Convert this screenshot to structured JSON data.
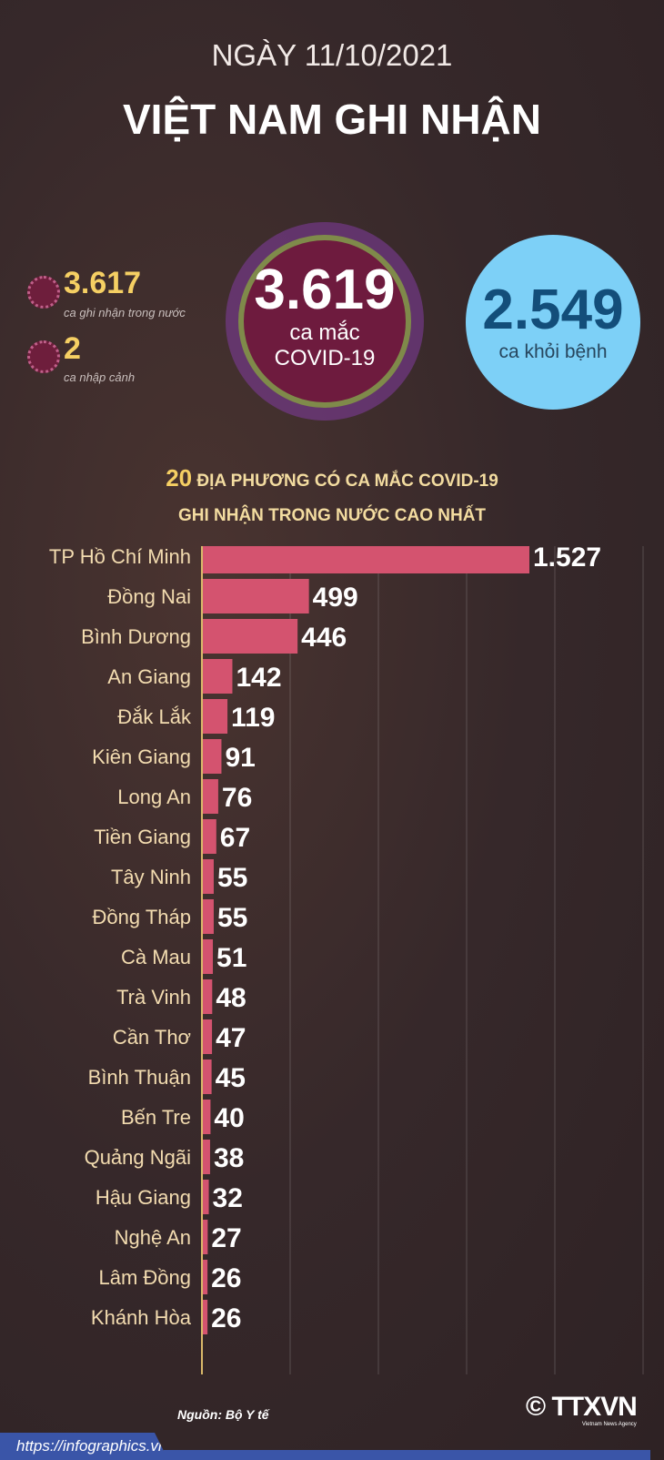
{
  "header": {
    "date": "NGÀY 11/10/2021",
    "title": "VIỆT NAM GHI NHẬN"
  },
  "stats": {
    "domestic": {
      "value": "3.617",
      "label": "ca ghi nhận trong nước"
    },
    "imported": {
      "value": "2",
      "label": "ca nhập cảnh"
    },
    "total": {
      "value": "3.619",
      "label1": "ca mắc",
      "label2": "COVID-19"
    },
    "recovered": {
      "value": "2.549",
      "label": "ca khỏi bệnh"
    }
  },
  "chart_data": {
    "type": "bar",
    "orientation": "horizontal",
    "title_number": "20",
    "title_line1": "ĐỊA PHƯƠNG CÓ CA MẮC COVID-19",
    "title_line2": "GHI NHẬN TRONG NƯỚC CAO NHẤT",
    "categories": [
      "TP Hồ Chí Minh",
      "Đồng Nai",
      "Bình Dương",
      "An Giang",
      "Đắk Lắk",
      "Kiên Giang",
      "Long An",
      "Tiền Giang",
      "Tây Ninh",
      "Đồng Tháp",
      "Cà Mau",
      "Trà Vinh",
      "Cần Thơ",
      "Bình Thuận",
      "Bến Tre",
      "Quảng Ngãi",
      "Hậu Giang",
      "Nghệ An",
      "Lâm Đồng",
      "Khánh Hòa"
    ],
    "values": [
      1527,
      499,
      446,
      142,
      119,
      91,
      76,
      67,
      55,
      55,
      51,
      48,
      47,
      45,
      40,
      38,
      32,
      27,
      26,
      26
    ],
    "value_labels": [
      "1.527",
      "499",
      "446",
      "142",
      "119",
      "91",
      "76",
      "67",
      "55",
      "55",
      "51",
      "48",
      "47",
      "45",
      "40",
      "38",
      "32",
      "27",
      "26",
      "26"
    ],
    "grid": true,
    "bar_color": "#d4536f"
  },
  "footer": {
    "source": "Nguồn: Bộ Y tế",
    "url": "https://infographics.vn",
    "logo": "TTXVN",
    "logo_sub": "Vietnam News Agency",
    "copyright": "©"
  }
}
